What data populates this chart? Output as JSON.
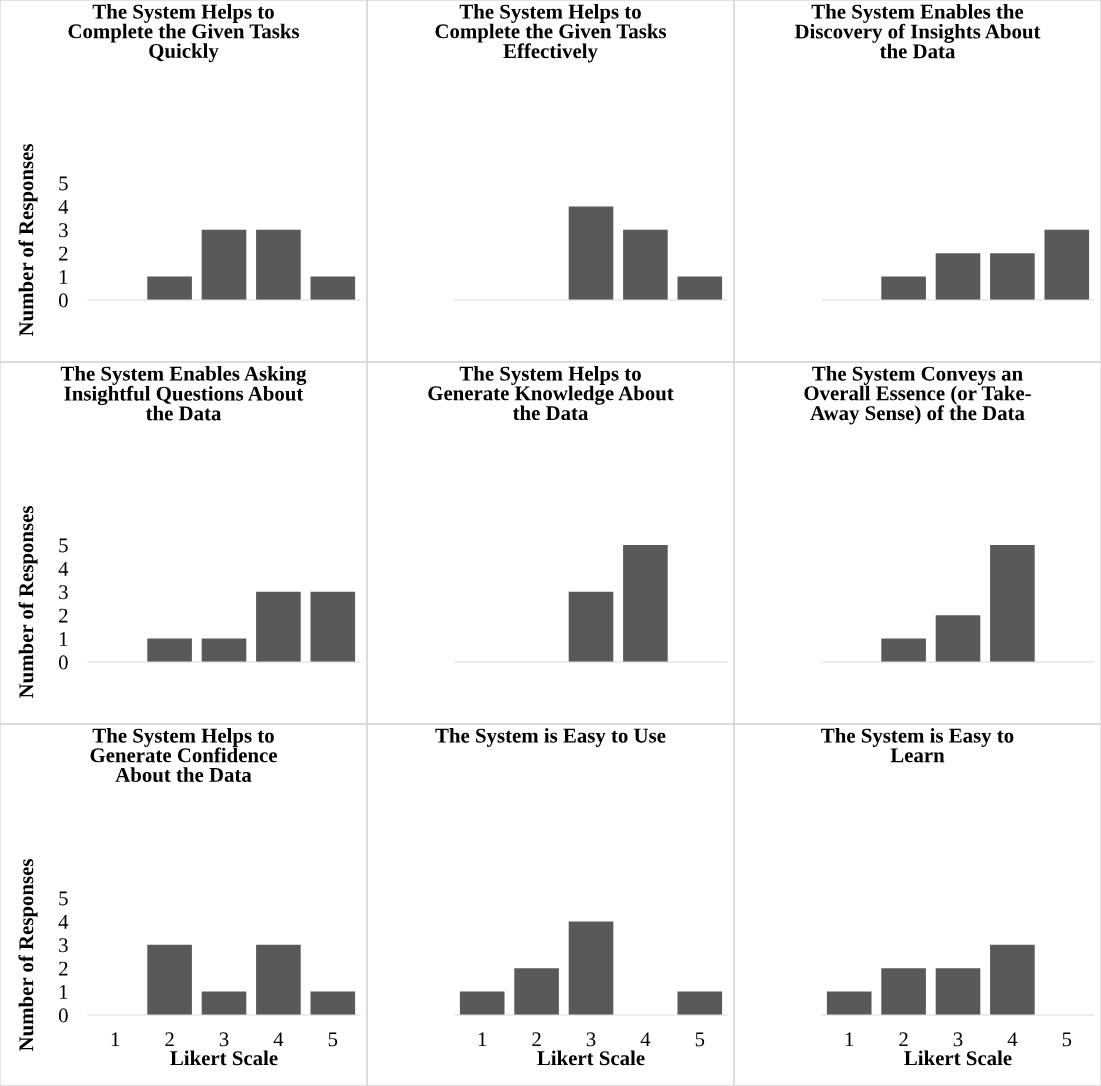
{
  "chart_data": [
    {
      "type": "bar",
      "title": "The System Helps to\nComplete the Given Tasks\nQuickly",
      "ylabel": "Number of Responses",
      "categories": [
        "1",
        "2",
        "3",
        "4",
        "5"
      ],
      "values": [
        0,
        1,
        3,
        3,
        1
      ],
      "color": "#595959",
      "ylim": [
        0,
        5
      ],
      "yticks": [
        0,
        1,
        2,
        3,
        4,
        5
      ],
      "tick_labels": "y",
      "grid": false,
      "legend": false
    },
    {
      "type": "bar",
      "title": "The System Helps to\nComplete the Given Tasks\nEffectively",
      "categories": [
        "1",
        "2",
        "3",
        "4",
        "5"
      ],
      "values": [
        0,
        0,
        4,
        3,
        1
      ],
      "color": "#595959",
      "ylim": [
        0,
        5
      ],
      "tick_labels": false,
      "grid": false,
      "legend": false
    },
    {
      "type": "bar",
      "title": "The System Enables the\nDiscovery of Insights About\nthe Data",
      "categories": [
        "1",
        "2",
        "3",
        "4",
        "5"
      ],
      "values": [
        0,
        1,
        2,
        2,
        3
      ],
      "color": "#595959",
      "ylim": [
        0,
        5
      ],
      "tick_labels": false,
      "grid": false,
      "legend": false
    },
    {
      "type": "bar",
      "title": "The System Enables Asking\nInsightful Questions About\nthe Data",
      "ylabel": "Number of Responses",
      "categories": [
        "1",
        "2",
        "3",
        "4",
        "5"
      ],
      "values": [
        0,
        1,
        1,
        3,
        3
      ],
      "color": "#595959",
      "ylim": [
        0,
        5
      ],
      "yticks": [
        0,
        1,
        2,
        3,
        4,
        5
      ],
      "tick_labels": "y",
      "grid": false,
      "legend": false
    },
    {
      "type": "bar",
      "title": "The System Helps to\nGenerate Knowledge About\nthe Data",
      "categories": [
        "1",
        "2",
        "3",
        "4",
        "5"
      ],
      "values": [
        0,
        0,
        3,
        5,
        0
      ],
      "color": "#595959",
      "ylim": [
        0,
        5
      ],
      "tick_labels": false,
      "grid": false,
      "legend": false
    },
    {
      "type": "bar",
      "title": "The System Conveys an\nOverall Essence (or Take-\nAway Sense) of the Data",
      "categories": [
        "1",
        "2",
        "3",
        "4",
        "5"
      ],
      "values": [
        0,
        1,
        2,
        5,
        0
      ],
      "color": "#595959",
      "ylim": [
        0,
        5
      ],
      "tick_labels": false,
      "grid": false,
      "legend": false
    },
    {
      "type": "bar",
      "title": "The System Helps to\nGenerate Confidence\nAbout the Data",
      "xlabel": "Likert Scale",
      "ylabel": "Number of Responses",
      "categories": [
        "1",
        "2",
        "3",
        "4",
        "5"
      ],
      "values": [
        0,
        3,
        1,
        3,
        1
      ],
      "color": "#595959",
      "ylim": [
        0,
        5
      ],
      "yticks": [
        0,
        1,
        2,
        3,
        4,
        5
      ],
      "grid": false,
      "legend": false
    },
    {
      "type": "bar",
      "title": "The System is Easy to Use",
      "xlabel": "Likert Scale",
      "categories": [
        "1",
        "2",
        "3",
        "4",
        "5"
      ],
      "values": [
        1,
        2,
        4,
        0,
        1
      ],
      "color": "#595959",
      "ylim": [
        0,
        5
      ],
      "tick_labels": "x",
      "grid": false,
      "legend": false
    },
    {
      "type": "bar",
      "title": "The System is Easy to\nLearn",
      "xlabel": "Likert Scale",
      "categories": [
        "1",
        "2",
        "3",
        "4",
        "5"
      ],
      "values": [
        1,
        2,
        2,
        3,
        0
      ],
      "color": "#595959",
      "ylim": [
        0,
        5
      ],
      "tick_labels": "x",
      "grid": false,
      "legend": false
    }
  ]
}
